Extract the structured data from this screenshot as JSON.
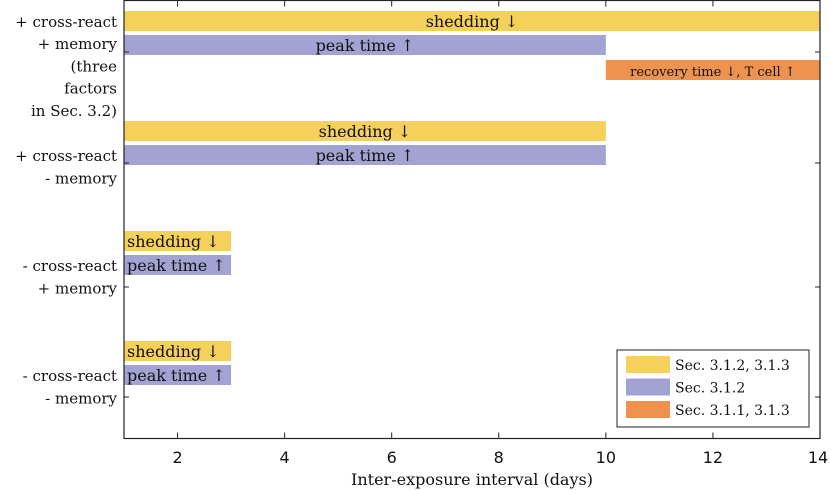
{
  "chart_data": {
    "type": "bar",
    "orientation": "horizontal",
    "xlabel": "Inter-exposure interval (days)",
    "xlim": [
      1,
      14
    ],
    "xticks": [
      2,
      4,
      6,
      8,
      10,
      12,
      14
    ],
    "grid": false,
    "legend_position": "bottom-right",
    "rows": [
      {
        "label": [
          "+ cross-react",
          "+ memory",
          "(three",
          "factors",
          "in Sec. 3.2)"
        ],
        "bars": [
          {
            "series": 0,
            "start": 1,
            "end": 14,
            "text": "shedding ↓"
          },
          {
            "series": 1,
            "start": 1,
            "end": 10,
            "text": "peak time ↑"
          },
          {
            "series": 2,
            "start": 10,
            "end": 14,
            "text": "recovery time ↓, T cell ↑"
          }
        ]
      },
      {
        "label": [
          "+ cross-react",
          "- memory"
        ],
        "bars": [
          {
            "series": 0,
            "start": 1,
            "end": 10,
            "text": "shedding ↓"
          },
          {
            "series": 1,
            "start": 1,
            "end": 10,
            "text": "peak time ↑"
          }
        ]
      },
      {
        "label": [
          "- cross-react",
          "+ memory"
        ],
        "bars": [
          {
            "series": 0,
            "start": 1,
            "end": 3,
            "text": "shedding ↓"
          },
          {
            "series": 1,
            "start": 1,
            "end": 3,
            "text": "peak time ↑"
          }
        ]
      },
      {
        "label": [
          "- cross-react",
          "- memory"
        ],
        "bars": [
          {
            "series": 0,
            "start": 1,
            "end": 3,
            "text": "shedding ↓"
          },
          {
            "series": 1,
            "start": 1,
            "end": 3,
            "text": "peak time ↑"
          }
        ]
      }
    ],
    "series": [
      {
        "name": "Sec. 3.1.2, 3.1.3",
        "color": "#F5D05A"
      },
      {
        "name": "Sec. 3.1.2",
        "color": "#A3A3D3"
      },
      {
        "name": "Sec. 3.1.1, 3.1.3",
        "color": "#EE9250"
      }
    ]
  }
}
